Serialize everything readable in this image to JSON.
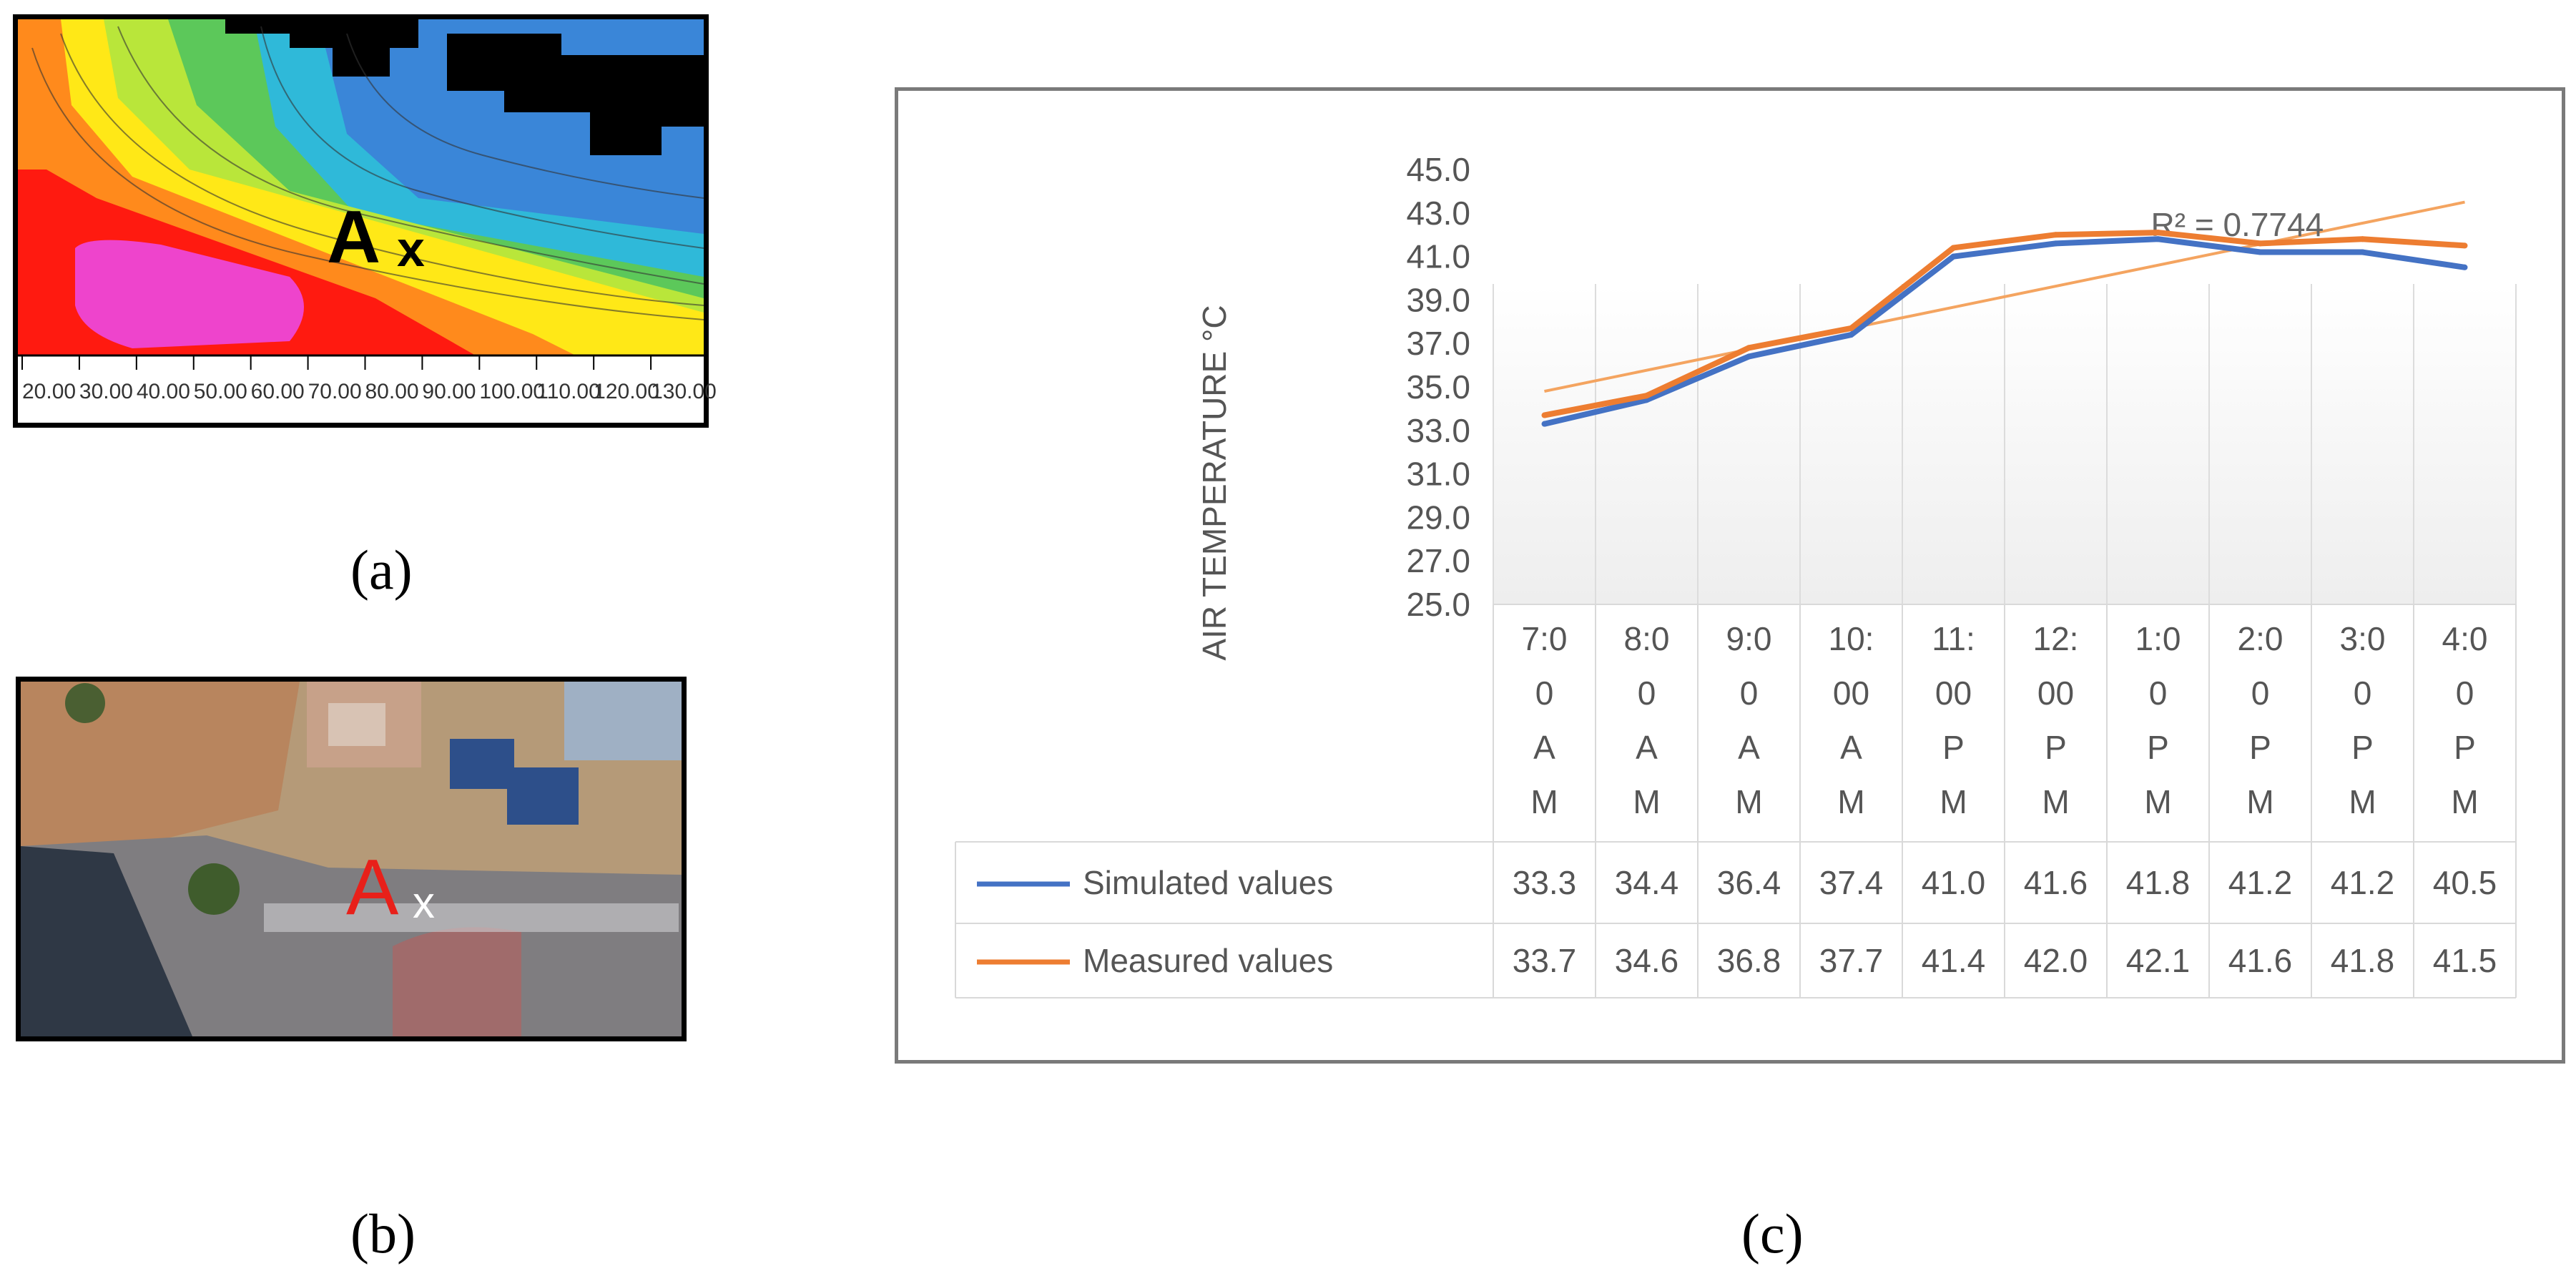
{
  "panel_a": {
    "marker_letter": "A",
    "marker_x": "x",
    "axis_ticks": [
      "20.00",
      "30.00",
      "40.00",
      "50.00",
      "60.00",
      "70.00",
      "80.00",
      "90.00",
      "100.00",
      "110.00",
      "120.00",
      "130.00"
    ]
  },
  "panel_b": {
    "marker_letter": "A",
    "marker_x": "x"
  },
  "captions": {
    "a": "(a)",
    "b": "(b)",
    "c": "(c)"
  },
  "colors": {
    "simulated": "#4472C4",
    "measured": "#ED7D31",
    "trend": "#F4A460",
    "red": "#ff1a10",
    "magenta": "#ee44cc",
    "orange": "#ff8a1c",
    "yellow": "#ffe817",
    "lime": "#b9e63a",
    "green": "#5cc85a",
    "cyan": "#2fb9d9",
    "blue": "#3a86d8",
    "black": "#000000"
  },
  "chart_data": {
    "type": "line",
    "ylabel": "AIR TEMPERATURE °C",
    "ylim": [
      25.0,
      45.0
    ],
    "yticks": [
      "25.0",
      "27.0",
      "29.0",
      "31.0",
      "33.0",
      "35.0",
      "37.0",
      "39.0",
      "41.0",
      "43.0",
      "45.0"
    ],
    "categories": [
      "7:00 AM",
      "8:00 AM",
      "9:00 AM",
      "10:00 AM",
      "11:00 PM",
      "12:00 PM",
      "1:00 PM",
      "2:00 PM",
      "3:00 PM",
      "4:00 PM"
    ],
    "category_lines": [
      [
        "7:0",
        "0",
        "A",
        "M"
      ],
      [
        "8:0",
        "0",
        "A",
        "M"
      ],
      [
        "9:0",
        "0",
        "A",
        "M"
      ],
      [
        "10:",
        "00",
        "A",
        "M"
      ],
      [
        "11:",
        "00",
        "P",
        "M"
      ],
      [
        "12:",
        "00",
        "P",
        "M"
      ],
      [
        "1:0",
        "0",
        "P",
        "M"
      ],
      [
        "2:0",
        "0",
        "P",
        "M"
      ],
      [
        "3:0",
        "0",
        "P",
        "M"
      ],
      [
        "4:0",
        "0",
        "P",
        "M"
      ]
    ],
    "series": [
      {
        "name": "Simulated values",
        "values": [
          33.3,
          34.4,
          36.4,
          37.4,
          41.0,
          41.6,
          41.8,
          41.2,
          41.2,
          40.5
        ],
        "labels": [
          "33.3",
          "34.4",
          "36.4",
          "37.4",
          "41.0",
          "41.6",
          "41.8",
          "41.2",
          "41.2",
          "40.5"
        ]
      },
      {
        "name": "Measured values",
        "values": [
          33.7,
          34.6,
          36.8,
          37.7,
          41.4,
          42.0,
          42.1,
          41.6,
          41.8,
          41.5
        ],
        "labels": [
          "33.7",
          "34.6",
          "36.8",
          "37.7",
          "41.4",
          "42.0",
          "42.1",
          "41.6",
          "41.8",
          "41.5"
        ]
      }
    ],
    "trendline": {
      "series": "Measured values",
      "start": 34.8,
      "end": 43.5,
      "label": "R² = 0.7744"
    },
    "data_table": true,
    "grid": "vertical"
  }
}
